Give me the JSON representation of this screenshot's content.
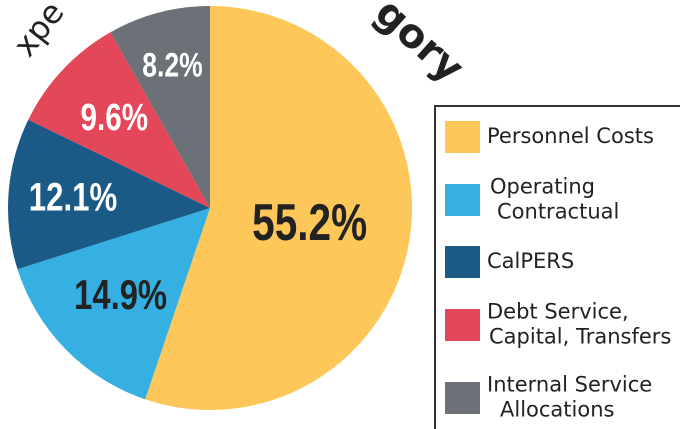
{
  "chart_data": {
    "type": "pie",
    "annotations": [
      "xpe",
      "gory"
    ],
    "categories": [
      "Personnel Costs",
      "Operating\nContractual",
      "CalPERS",
      "Debt Service,\nCapital, Transfers",
      "Internal Service\nAllocations"
    ],
    "values": [
      55.2,
      14.9,
      12.1,
      9.6,
      8.2
    ],
    "value_labels": [
      "55.2%",
      "14.9%",
      "12.1%",
      "9.6%",
      "8.2%"
    ],
    "colors": [
      "#fdc75a",
      "#36b0e2",
      "#1b5a86",
      "#e4475a",
      "#6b7177"
    ],
    "legend": "right"
  }
}
